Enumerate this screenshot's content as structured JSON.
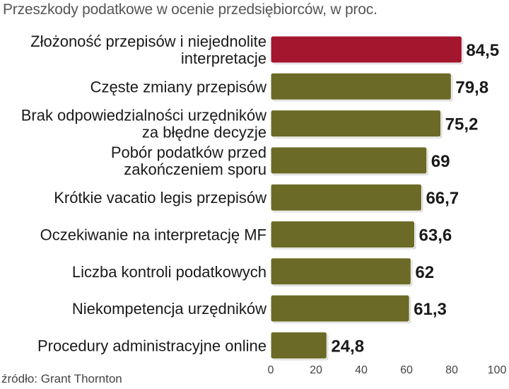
{
  "title": "Przeszkody podatkowe w ocenie przedsiębiorców, w proc.",
  "source": "źródło: Grant Thornton",
  "colors": {
    "highlight": "#a3162e",
    "bar": "#6b6b27",
    "bar_outline": "#ffffff"
  },
  "chart_data": {
    "type": "bar",
    "orientation": "horizontal",
    "title": "Przeszkody podatkowe w ocenie przedsiębiorców, w proc.",
    "xlabel": "",
    "ylabel": "",
    "xlim": [
      0,
      100
    ],
    "xticks": [
      0,
      20,
      40,
      60,
      80,
      100
    ],
    "categories": [
      [
        "Złożoność przepisów i niejednolite",
        "interpretacje"
      ],
      [
        "Częste zmiany przepisów"
      ],
      [
        "Brak odpowiedzialności urzędników",
        "za błędne decyzje"
      ],
      [
        "Pobór podatków przed",
        "zakończeniem sporu"
      ],
      [
        "Krótkie vacatio legis przepisów"
      ],
      [
        "Oczekiwanie na interpretację MF"
      ],
      [
        "Liczba kontroli podatkowych"
      ],
      [
        "Niekompetencja urzędników"
      ],
      [
        "Procedury administracyjne online"
      ]
    ],
    "values": [
      84.5,
      79.8,
      75.2,
      69,
      66.7,
      63.6,
      62,
      61.3,
      24.8
    ],
    "value_labels": [
      "84,5",
      "79,8",
      "75,2",
      "69",
      "66,7",
      "63,6",
      "62",
      "61,3",
      "24,8"
    ],
    "highlight_index": 0
  }
}
